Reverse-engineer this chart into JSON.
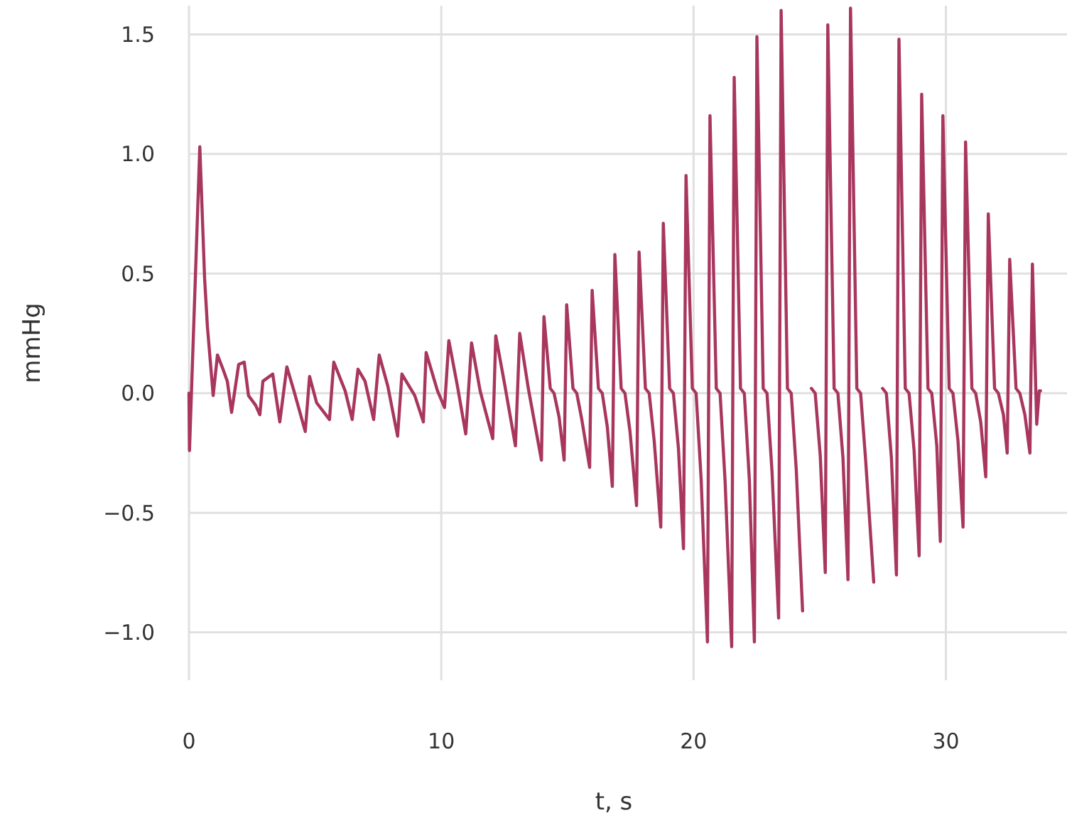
{
  "chart_data": {
    "type": "line",
    "xlabel": "t, s",
    "ylabel": "mmHg",
    "grid": true,
    "line_style": "solid",
    "xlim": [
      0,
      34.8
    ],
    "xticks": [
      0,
      10,
      20,
      30
    ],
    "ylim": [
      -1.2,
      1.62
    ],
    "yticks": [
      {
        "value": -1,
        "label": "−1.0"
      },
      {
        "value": -0.5,
        "label": "−0.5"
      },
      {
        "value": 0,
        "label": "0.0"
      },
      {
        "value": 0.5,
        "label": "0.5"
      },
      {
        "value": 1,
        "label": "1.0"
      },
      {
        "value": 1.5,
        "label": "1.5"
      }
    ],
    "x": [
      0,
      0.02,
      0.43,
      0.62,
      0.73,
      0.96,
      1.13,
      1.35,
      1.52,
      1.69,
      1.97,
      2.19,
      2.36,
      2.64,
      2.81,
      2.93,
      3.32,
      3.6,
      3.88,
      4.16,
      4.61,
      4.78,
      5.06,
      5.57,
      5.74,
      6.19,
      6.47,
      6.7,
      6.98,
      7.32,
      7.54,
      7.88,
      8.27,
      8.44,
      8.95,
      9.29,
      9.4,
      9.85,
      10.13,
      10.3,
      10.64,
      10.97,
      11.2,
      11.54,
      12.04,
      12.16,
      12.49,
      12.94,
      13.11,
      13.45,
      13.97,
      14.07,
      14.32,
      14.47,
      14.67,
      14.87,
      14.97,
      15.22,
      15.37,
      15.57,
      15.88,
      15.98,
      16.23,
      16.38,
      16.58,
      16.78,
      16.88,
      17.13,
      17.28,
      17.48,
      17.74,
      17.84,
      18.09,
      18.24,
      18.44,
      18.7,
      18.8,
      19.05,
      19.2,
      19.4,
      19.6,
      19.7,
      19.95,
      20.1,
      20.3,
      20.55,
      20.65,
      20.9,
      21.05,
      21.25,
      21.51,
      21.61,
      21.86,
      22.01,
      22.21,
      22.41,
      22.51,
      22.76,
      22.91,
      23.11,
      23.37,
      23.47,
      23.72,
      23.87,
      24.07,
      24.32,
      24.42,
      24.67,
      24.82,
      25.02,
      25.22,
      25.32,
      25.57,
      25.72,
      25.92,
      26.12,
      26.22,
      26.47,
      26.62,
      26.82,
      27.14,
      27.24,
      27.49,
      27.64,
      27.84,
      28.04,
      28.14,
      28.39,
      28.54,
      28.74,
      28.94,
      29.04,
      29.29,
      29.44,
      29.64,
      29.78,
      29.88,
      30.13,
      30.28,
      30.48,
      30.68,
      30.78,
      31.03,
      31.18,
      31.38,
      31.58,
      31.68,
      31.93,
      32.08,
      32.28,
      32.43,
      32.53,
      32.78,
      32.93,
      33.13,
      33.33,
      33.43,
      33.6,
      33.7,
      33.75
    ],
    "series": [
      {
        "color": "#a8365e",
        "values": [
          0,
          -0.24,
          1.03,
          0.48,
          0.28,
          -0.01,
          0.16,
          0.1,
          0.05,
          -0.08,
          0.12,
          0.13,
          -0.01,
          -0.05,
          -0.09,
          0.05,
          0.08,
          -0.12,
          0.11,
          0.01,
          -0.16,
          0.07,
          -0.04,
          -0.11,
          0.13,
          0.01,
          -0.11,
          0.1,
          0.05,
          -0.11,
          0.16,
          0.03,
          -0.18,
          0.08,
          -0.01,
          -0.12,
          0.17,
          0.01,
          -0.06,
          0.22,
          0.03,
          -0.17,
          0.21,
          0.01,
          -0.19,
          0.24,
          0.05,
          -0.22,
          0.25,
          0.02,
          -0.28,
          0.32,
          0.02,
          0,
          -0.1,
          -0.28,
          0.37,
          0.02,
          0,
          -0.11,
          -0.31,
          0.43,
          0.02,
          0,
          -0.14,
          -0.39,
          0.58,
          0.02,
          0,
          -0.16,
          -0.47,
          0.59,
          0.02,
          0,
          -0.2,
          -0.56,
          0.71,
          0.02,
          0,
          -0.23,
          -0.65,
          0.91,
          0.02,
          0,
          -0.36,
          -1.04,
          1.16,
          0.02,
          0,
          -0.37,
          -1.06,
          1.32,
          0.02,
          0,
          -0.36,
          -1.04,
          1.49,
          0.02,
          0,
          -0.33,
          -0.94,
          1.6,
          0.02,
          0,
          -0.32,
          -0.91,
          null,
          0.02,
          0,
          -0.26,
          -0.75,
          1.54,
          0.02,
          0,
          -0.27,
          -0.78,
          1.61,
          0.02,
          0,
          -0.28,
          -0.79,
          null,
          0.02,
          0,
          -0.27,
          -0.76,
          1.48,
          0.02,
          0,
          -0.24,
          -0.68,
          1.25,
          0.02,
          0,
          -0.22,
          -0.62,
          1.16,
          0.02,
          0,
          -0.2,
          -0.56,
          1.05,
          0.02,
          0,
          -0.12,
          -0.35,
          0.75,
          0.02,
          0,
          -0.09,
          -0.25,
          0.56,
          0.02,
          0,
          -0.09,
          -0.25,
          0.54,
          -0.13,
          0.01,
          0.01
        ]
      }
    ]
  }
}
